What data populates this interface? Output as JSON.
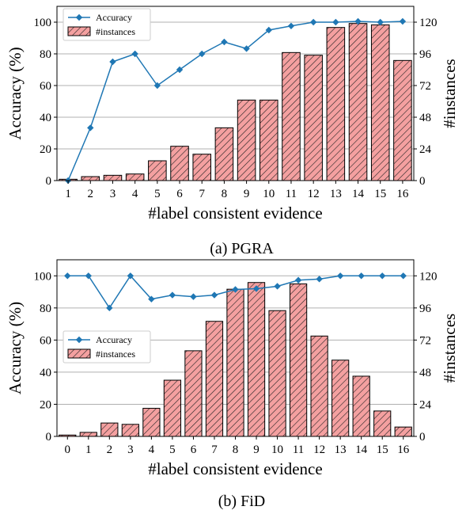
{
  "chart_data": [
    {
      "type": "bar+line",
      "caption": "(a) PGRA",
      "xlabel": "#label consistent evidence",
      "ylabel_left": "Accuracy (%)",
      "ylabel_right": "#instances",
      "categories": [
        "1",
        "2",
        "3",
        "4",
        "5",
        "6",
        "7",
        "8",
        "9",
        "10",
        "11",
        "12",
        "13",
        "14",
        "15",
        "16"
      ],
      "ylim_left": [
        0,
        110
      ],
      "yticks_left": [
        "0",
        "20",
        "40",
        "60",
        "80",
        "100"
      ],
      "ylim_right": [
        0,
        132
      ],
      "yticks_right": [
        "0",
        "24",
        "48",
        "72",
        "96",
        "120"
      ],
      "legend_position": "upper-left",
      "series": [
        {
          "name": "Accuracy",
          "type": "line",
          "axis": "left",
          "color": "#1f77b4",
          "values": [
            0,
            33.3,
            75,
            80,
            60,
            70,
            80,
            87.5,
            83.3,
            95,
            97.6,
            100,
            100,
            100.5,
            100,
            100.5
          ]
        },
        {
          "name": "#instances",
          "type": "bar",
          "axis": "right",
          "color": "#f4a0a0",
          "values": [
            1,
            3,
            4,
            5,
            15,
            26,
            20,
            40,
            61,
            61,
            97,
            95,
            116,
            119,
            118,
            91
          ]
        }
      ]
    },
    {
      "type": "bar+line",
      "caption": "(b) FiD",
      "xlabel": "#label consistent evidence",
      "ylabel_left": "Accuracy (%)",
      "ylabel_right": "#instances",
      "categories": [
        "0",
        "1",
        "2",
        "3",
        "4",
        "5",
        "6",
        "7",
        "8",
        "9",
        "10",
        "11",
        "12",
        "13",
        "14",
        "15",
        "16"
      ],
      "ylim_left": [
        0,
        110
      ],
      "yticks_left": [
        "0",
        "20",
        "40",
        "60",
        "80",
        "100"
      ],
      "ylim_right": [
        0,
        132
      ],
      "yticks_right": [
        "0",
        "24",
        "48",
        "72",
        "96",
        "120"
      ],
      "legend_position": "center-left",
      "series": [
        {
          "name": "Accuracy",
          "type": "line",
          "axis": "left",
          "color": "#1f77b4",
          "values": [
            100,
            100,
            80,
            100,
            85.5,
            88,
            87,
            88,
            91.5,
            92,
            93.5,
            97.3,
            98,
            100,
            100,
            100,
            100
          ]
        },
        {
          "name": "#instances",
          "type": "bar",
          "axis": "right",
          "color": "#f4a0a0",
          "values": [
            1,
            3,
            10,
            9,
            21,
            42,
            64,
            86,
            110,
            115,
            94,
            114,
            75,
            57,
            45,
            19,
            7
          ]
        }
      ]
    }
  ]
}
